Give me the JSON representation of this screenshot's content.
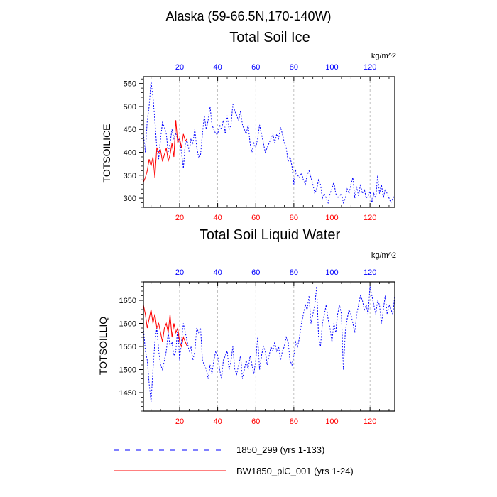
{
  "figure": {
    "suptitle": "Alaska (59-66.5N,170-140W)",
    "units_label": "kg/m^2",
    "colors": {
      "base": "#0000ff",
      "exp": "#ff0000",
      "axis": "#000000",
      "grid": "#999999"
    }
  },
  "legend": [
    {
      "label": "1850_299 (yrs 1-133)",
      "style": "dashed",
      "color": "#0000ff"
    },
    {
      "label": "BW1850_piC_001 (yrs 1-24)",
      "style": "solid",
      "color": "#ff0000"
    }
  ],
  "chart_data": [
    {
      "type": "line",
      "title": "Total Soil Ice",
      "ylabel": "TOTSOILICE",
      "units": "kg/m^2",
      "xlim": [
        1,
        133
      ],
      "ylim": [
        280,
        565
      ],
      "xticks": [
        20,
        40,
        60,
        80,
        100,
        120
      ],
      "yticks": [
        300,
        350,
        400,
        450,
        500,
        550
      ],
      "series": [
        {
          "name": "1850_299 (yrs 1-133)",
          "color": "#0000ff",
          "style": "dashed",
          "x": [
            1,
            2,
            3,
            4,
            5,
            6,
            7,
            8,
            9,
            10,
            11,
            12,
            13,
            14,
            15,
            16,
            17,
            18,
            19,
            20,
            21,
            22,
            23,
            24,
            25,
            26,
            27,
            28,
            29,
            30,
            31,
            32,
            33,
            34,
            35,
            36,
            37,
            38,
            39,
            40,
            41,
            42,
            43,
            44,
            45,
            46,
            47,
            48,
            49,
            50,
            51,
            52,
            53,
            54,
            55,
            56,
            57,
            58,
            59,
            60,
            61,
            62,
            63,
            64,
            65,
            66,
            67,
            68,
            69,
            70,
            71,
            72,
            73,
            74,
            75,
            76,
            77,
            78,
            79,
            80,
            81,
            82,
            83,
            84,
            85,
            86,
            87,
            88,
            89,
            90,
            91,
            92,
            93,
            94,
            95,
            96,
            97,
            98,
            99,
            100,
            101,
            102,
            103,
            104,
            105,
            106,
            107,
            108,
            109,
            110,
            111,
            112,
            113,
            114,
            115,
            116,
            117,
            118,
            119,
            120,
            121,
            122,
            123,
            124,
            125,
            126,
            127,
            128,
            129,
            130,
            131,
            132,
            133
          ],
          "values": [
            440,
            400,
            470,
            500,
            555,
            520,
            470,
            410,
            385,
            430,
            465,
            455,
            440,
            400,
            420,
            450,
            430,
            440,
            430,
            425,
            400,
            365,
            420,
            425,
            400,
            430,
            420,
            450,
            410,
            390,
            395,
            440,
            480,
            450,
            470,
            500,
            460,
            450,
            440,
            440,
            460,
            450,
            470,
            440,
            480,
            450,
            460,
            505,
            490,
            480,
            470,
            490,
            460,
            450,
            440,
            460,
            420,
            400,
            420,
            410,
            430,
            460,
            440,
            420,
            400,
            410,
            420,
            430,
            440,
            420,
            440,
            430,
            455,
            440,
            420,
            410,
            380,
            390,
            370,
            330,
            360,
            350,
            345,
            355,
            340,
            330,
            350,
            360,
            345,
            330,
            310,
            320,
            340,
            330,
            300,
            310,
            300,
            290,
            310,
            320,
            335,
            310,
            300,
            305,
            310,
            290,
            300,
            320,
            310,
            330,
            345,
            300,
            325,
            305,
            330,
            310,
            320,
            300,
            305,
            315,
            290,
            310,
            300,
            350,
            310,
            330,
            300,
            320,
            310,
            300,
            290,
            300,
            305
          ]
        },
        {
          "name": "BW1850_piC_001 (yrs 1-24)",
          "color": "#ff0000",
          "style": "solid",
          "x": [
            1,
            2,
            3,
            4,
            5,
            6,
            7,
            8,
            9,
            10,
            11,
            12,
            13,
            14,
            15,
            16,
            17,
            18,
            19,
            20,
            21,
            22,
            23,
            24
          ],
          "values": [
            335,
            345,
            360,
            385,
            370,
            390,
            345,
            410,
            400,
            405,
            380,
            395,
            410,
            380,
            395,
            420,
            390,
            470,
            420,
            430,
            410,
            440,
            425,
            430
          ]
        }
      ]
    },
    {
      "type": "line",
      "title": "Total Soil Liquid Water",
      "ylabel": "TOTSOILLIQ",
      "units": "kg/m^2",
      "xlim": [
        1,
        133
      ],
      "ylim": [
        1410,
        1690
      ],
      "xticks": [
        20,
        40,
        60,
        80,
        100,
        120
      ],
      "yticks": [
        1450,
        1500,
        1550,
        1600,
        1650
      ],
      "series": [
        {
          "name": "1850_299 (yrs 1-133)",
          "color": "#0000ff",
          "style": "dashed",
          "x": [
            1,
            2,
            3,
            4,
            5,
            6,
            7,
            8,
            9,
            10,
            11,
            12,
            13,
            14,
            15,
            16,
            17,
            18,
            19,
            20,
            21,
            22,
            23,
            24,
            25,
            26,
            27,
            28,
            29,
            30,
            31,
            32,
            33,
            34,
            35,
            36,
            37,
            38,
            39,
            40,
            41,
            42,
            43,
            44,
            45,
            46,
            47,
            48,
            49,
            50,
            51,
            52,
            53,
            54,
            55,
            56,
            57,
            58,
            59,
            60,
            61,
            62,
            63,
            64,
            65,
            66,
            67,
            68,
            69,
            70,
            71,
            72,
            73,
            74,
            75,
            76,
            77,
            78,
            79,
            80,
            81,
            82,
            83,
            84,
            85,
            86,
            87,
            88,
            89,
            90,
            91,
            92,
            93,
            94,
            95,
            96,
            97,
            98,
            99,
            100,
            101,
            102,
            103,
            104,
            105,
            106,
            107,
            108,
            109,
            110,
            111,
            112,
            113,
            114,
            115,
            116,
            117,
            118,
            119,
            120,
            121,
            122,
            123,
            124,
            125,
            126,
            127,
            128,
            129,
            130,
            131,
            132,
            133
          ],
          "values": [
            1590,
            1540,
            1520,
            1470,
            1430,
            1500,
            1560,
            1590,
            1540,
            1510,
            1500,
            1520,
            1540,
            1580,
            1550,
            1560,
            1530,
            1540,
            1590,
            1520,
            1560,
            1600,
            1580,
            1560,
            1540,
            1550,
            1520,
            1540,
            1590,
            1580,
            1590,
            1520,
            1510,
            1500,
            1480,
            1510,
            1490,
            1520,
            1540,
            1530,
            1500,
            1480,
            1520,
            1530,
            1540,
            1500,
            1520,
            1550,
            1500,
            1490,
            1510,
            1530,
            1480,
            1500,
            1520,
            1500,
            1530,
            1510,
            1490,
            1520,
            1570,
            1500,
            1530,
            1550,
            1540,
            1510,
            1530,
            1550,
            1540,
            1560,
            1540,
            1550,
            1520,
            1540,
            1550,
            1570,
            1560,
            1520,
            1510,
            1530,
            1560,
            1550,
            1570,
            1600,
            1620,
            1640,
            1630,
            1660,
            1600,
            1620,
            1640,
            1680,
            1570,
            1550,
            1600,
            1620,
            1640,
            1610,
            1590,
            1560,
            1600,
            1580,
            1620,
            1640,
            1620,
            1500,
            1580,
            1610,
            1630,
            1620,
            1600,
            1580,
            1620,
            1640,
            1660,
            1650,
            1630,
            1640,
            1620,
            1680,
            1660,
            1640,
            1620,
            1650,
            1640,
            1600,
            1630,
            1660,
            1620,
            1640,
            1630,
            1620,
            1660
          ]
        },
        {
          "name": "BW1850_piC_001 (yrs 1-24)",
          "color": "#ff0000",
          "style": "solid",
          "x": [
            1,
            2,
            3,
            4,
            5,
            6,
            7,
            8,
            9,
            10,
            11,
            12,
            13,
            14,
            15,
            16,
            17,
            18,
            19,
            20,
            21,
            22,
            23,
            24
          ],
          "values": [
            1640,
            1620,
            1590,
            1610,
            1630,
            1600,
            1620,
            1590,
            1600,
            1580,
            1560,
            1590,
            1600,
            1580,
            1620,
            1570,
            1600,
            1580,
            1590,
            1560,
            1550,
            1570,
            1560,
            1550
          ]
        }
      ]
    }
  ]
}
